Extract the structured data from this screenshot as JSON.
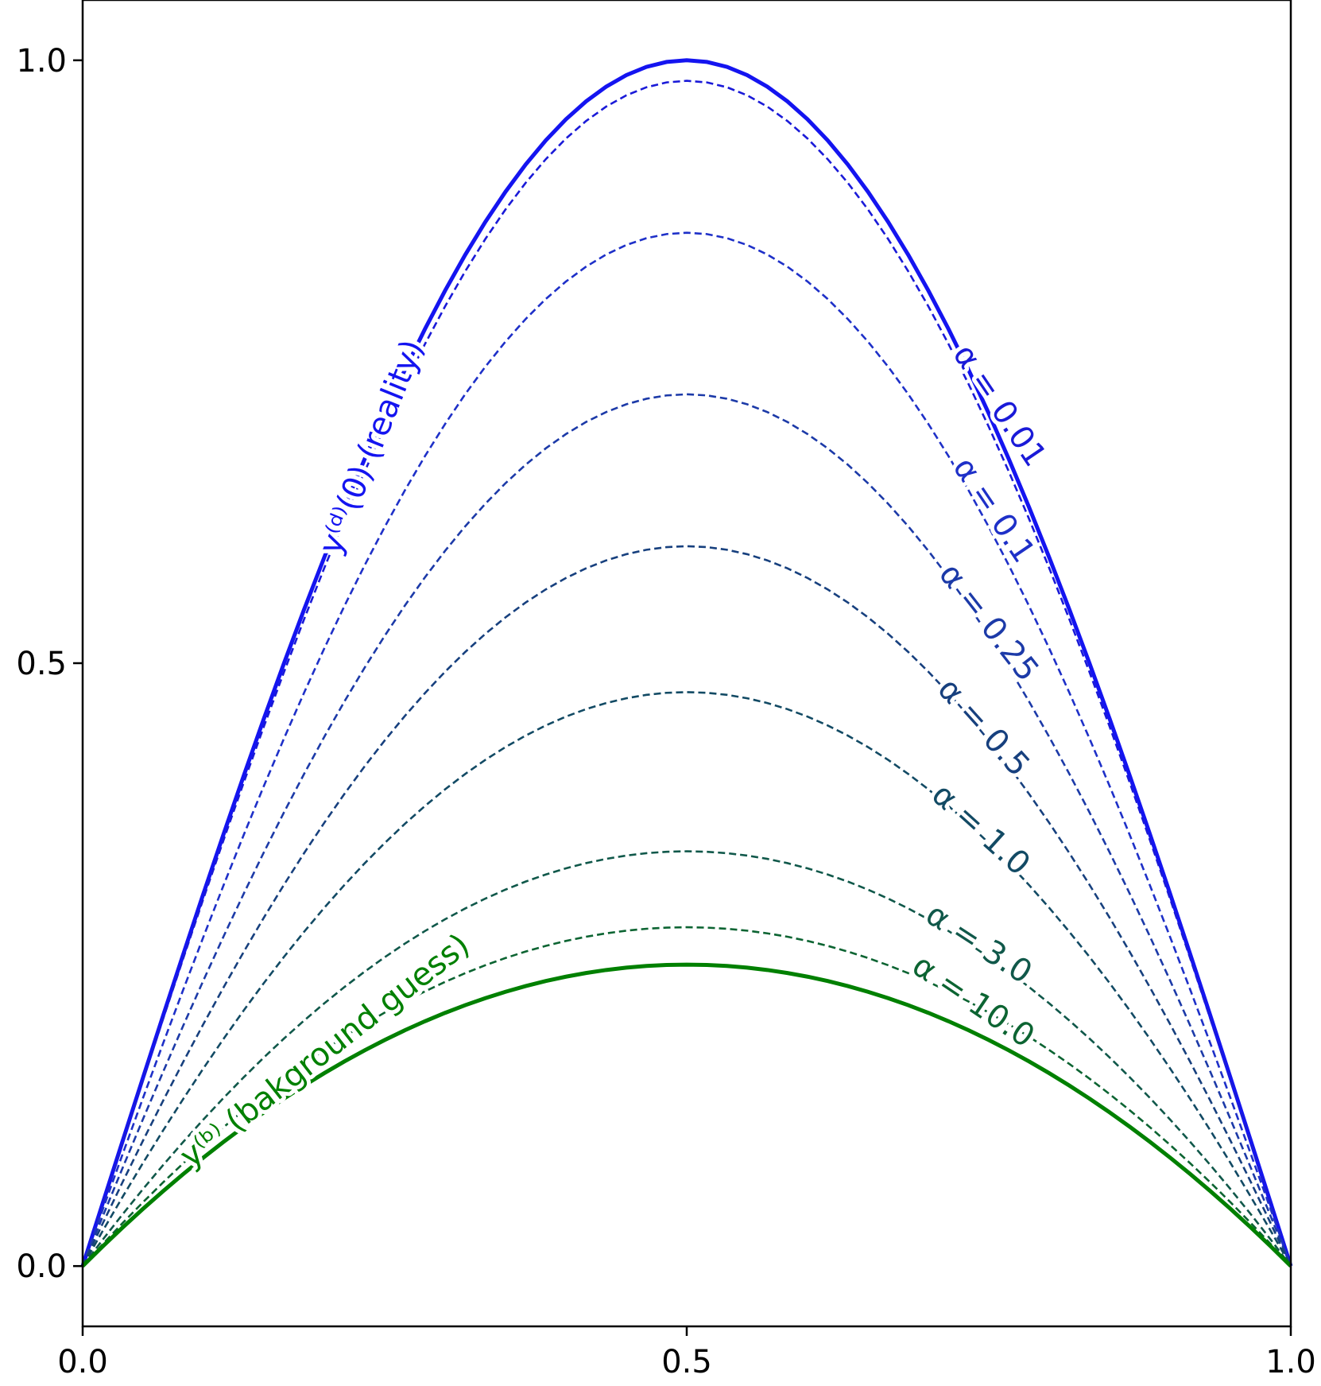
{
  "chart_data": {
    "type": "line",
    "title": "",
    "xlabel": "",
    "ylabel": "",
    "xlim": [
      0.0,
      1.0
    ],
    "ylim": [
      -0.05,
      1.05
    ],
    "grid": false,
    "legend": "none",
    "x_ticks": [
      "0.0",
      "0.5",
      "1.0"
    ],
    "y_ticks": [
      "0.0",
      "0.5",
      "1.0"
    ],
    "x_tick_values": [
      0.0,
      0.5,
      1.0
    ],
    "y_tick_values": [
      0.0,
      0.5,
      1.0
    ],
    "x": [
      0.0,
      0.05,
      0.1,
      0.15,
      0.2,
      0.25,
      0.3,
      0.35,
      0.4,
      0.45,
      0.5,
      0.55,
      0.6,
      0.65,
      0.7,
      0.75,
      0.8,
      0.85,
      0.9,
      0.95,
      1.0
    ],
    "series": [
      {
        "name": "y⁽ᵈ⁾(0) (reality)",
        "style": "solid",
        "color": "#1414f0",
        "peak": 1.0,
        "values": [
          0.0,
          0.156,
          0.309,
          0.454,
          0.588,
          0.707,
          0.809,
          0.891,
          0.951,
          0.988,
          1.0,
          0.988,
          0.951,
          0.891,
          0.809,
          0.707,
          0.588,
          0.454,
          0.309,
          0.156,
          0.0
        ]
      },
      {
        "name": "α = 0.01",
        "style": "dashed",
        "color": "#1a1ad8",
        "peak": 0.983,
        "values": [
          0.0,
          0.154,
          0.304,
          0.446,
          0.578,
          0.695,
          0.795,
          0.876,
          0.935,
          0.971,
          0.983,
          0.971,
          0.935,
          0.876,
          0.795,
          0.695,
          0.578,
          0.446,
          0.304,
          0.154,
          0.0
        ]
      },
      {
        "name": "α = 0.1",
        "style": "dashed",
        "color": "#1e30c8",
        "peak": 0.857,
        "values": [
          0.0,
          0.134,
          0.265,
          0.389,
          0.504,
          0.606,
          0.693,
          0.763,
          0.815,
          0.846,
          0.857,
          0.846,
          0.815,
          0.763,
          0.693,
          0.606,
          0.504,
          0.389,
          0.265,
          0.134,
          0.0
        ]
      },
      {
        "name": "α = 0.25",
        "style": "dashed",
        "color": "#1c3aa8",
        "peak": 0.723,
        "values": [
          0.0,
          0.113,
          0.223,
          0.328,
          0.425,
          0.511,
          0.585,
          0.644,
          0.688,
          0.714,
          0.723,
          0.714,
          0.688,
          0.644,
          0.585,
          0.511,
          0.425,
          0.328,
          0.223,
          0.113,
          0.0
        ]
      },
      {
        "name": "α = 0.5",
        "style": "dashed",
        "color": "#17407e",
        "peak": 0.597,
        "values": [
          0.0,
          0.093,
          0.184,
          0.271,
          0.351,
          0.422,
          0.483,
          0.532,
          0.568,
          0.59,
          0.597,
          0.59,
          0.568,
          0.532,
          0.483,
          0.422,
          0.351,
          0.271,
          0.184,
          0.093,
          0.0
        ]
      },
      {
        "name": "α = 1.0",
        "style": "dashed",
        "color": "#124a64",
        "peak": 0.476,
        "values": [
          0.0,
          0.074,
          0.147,
          0.216,
          0.28,
          0.337,
          0.385,
          0.424,
          0.453,
          0.47,
          0.476,
          0.47,
          0.453,
          0.424,
          0.385,
          0.337,
          0.28,
          0.216,
          0.147,
          0.074,
          0.0
        ]
      },
      {
        "name": "α = 3.0",
        "style": "dashed",
        "color": "#10584a",
        "peak": 0.344,
        "values": [
          0.0,
          0.039,
          0.097,
          0.152,
          0.201,
          0.245,
          0.282,
          0.311,
          0.332,
          0.34,
          0.344,
          0.34,
          0.332,
          0.311,
          0.282,
          0.245,
          0.201,
          0.152,
          0.097,
          0.039,
          0.0
        ]
      },
      {
        "name": "α = 10.0",
        "style": "dashed",
        "color": "#0c6432",
        "peak": 0.281,
        "values": [
          0.0,
          0.036,
          0.08,
          0.124,
          0.164,
          0.2,
          0.23,
          0.254,
          0.271,
          0.278,
          0.281,
          0.278,
          0.271,
          0.254,
          0.23,
          0.2,
          0.164,
          0.124,
          0.08,
          0.036,
          0.0
        ]
      },
      {
        "name": "y⁽ᵇ⁾ (bakground guess)",
        "style": "solid",
        "color": "#008000",
        "peak": 0.25,
        "values": [
          0.0,
          0.0475,
          0.09,
          0.1275,
          0.16,
          0.1875,
          0.21,
          0.2275,
          0.24,
          0.2475,
          0.25,
          0.2475,
          0.24,
          0.2275,
          0.21,
          0.1875,
          0.16,
          0.1275,
          0.09,
          0.0475,
          0.0
        ]
      }
    ]
  },
  "labels": {
    "reality": "y⁽ᵈ⁾(0) (reality)",
    "a001": "α = 0.01",
    "a01": "α = 0.1",
    "a025": "α = 0.25",
    "a05": "α = 0.5",
    "a10": "α = 1.0",
    "a30": "α = 3.0",
    "a100": "α = 10.0",
    "background": "y⁽ᵇ⁾ (bakground guess)"
  }
}
